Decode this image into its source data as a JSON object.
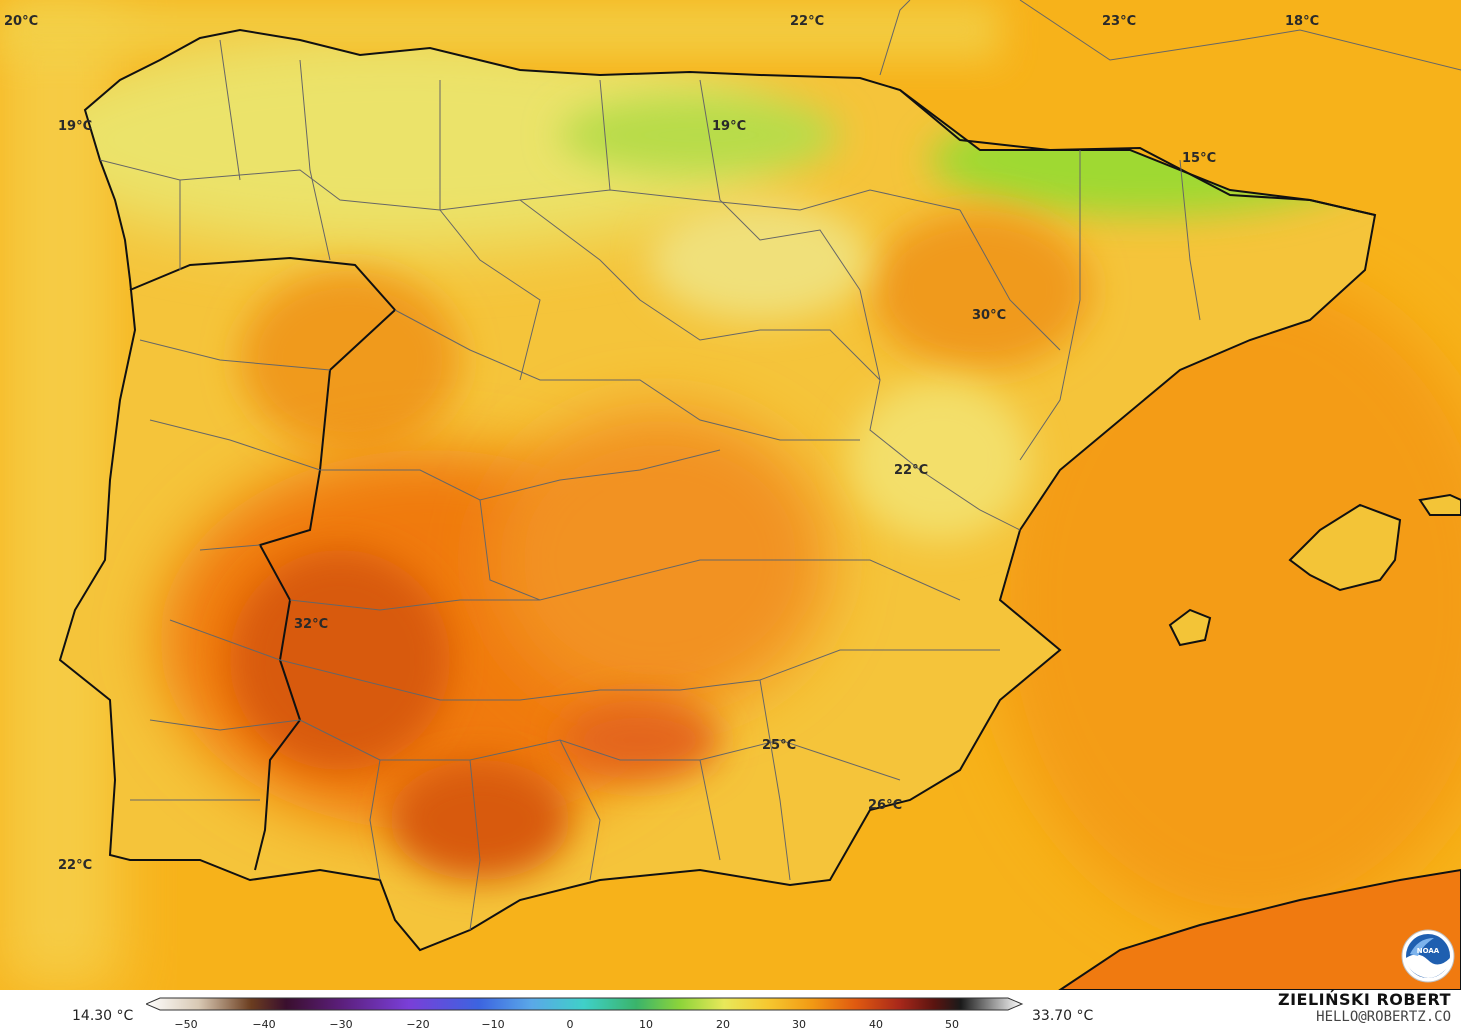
{
  "map": {
    "labels": [
      {
        "text": "20°C"
      },
      {
        "text": "22°C"
      },
      {
        "text": "23°C"
      },
      {
        "text": "18°C"
      },
      {
        "text": "19°C"
      },
      {
        "text": "19°C"
      },
      {
        "text": "15°C"
      },
      {
        "text": "30°C"
      },
      {
        "text": "22°C"
      },
      {
        "text": "32°C"
      },
      {
        "text": "25°C"
      },
      {
        "text": "26°C"
      },
      {
        "text": "22°C"
      }
    ],
    "colors": {
      "sea": "#f7b21a",
      "land_base": "#f5c43a",
      "north_coast": "#ebe36a",
      "pyrenees_cold": "#9fd933",
      "hot": "#f07a10",
      "hottest": "#d85a10",
      "med_sea": "#f49c12",
      "border": "#111111",
      "province_line": "#666666"
    }
  },
  "legend": {
    "min_label": "14.30 °C",
    "max_label": "33.70 °C",
    "ticks": [
      "−50",
      "−40",
      "−30",
      "−20",
      "−10",
      "0",
      "10",
      "20",
      "30",
      "40",
      "50"
    ]
  },
  "credit": {
    "name": "ZIELIŃSKI ROBERT",
    "email": "HELLO@ROBERTZ.CO"
  },
  "logo": {
    "text": "NOAA",
    "icon": "noaa-logo-icon"
  }
}
